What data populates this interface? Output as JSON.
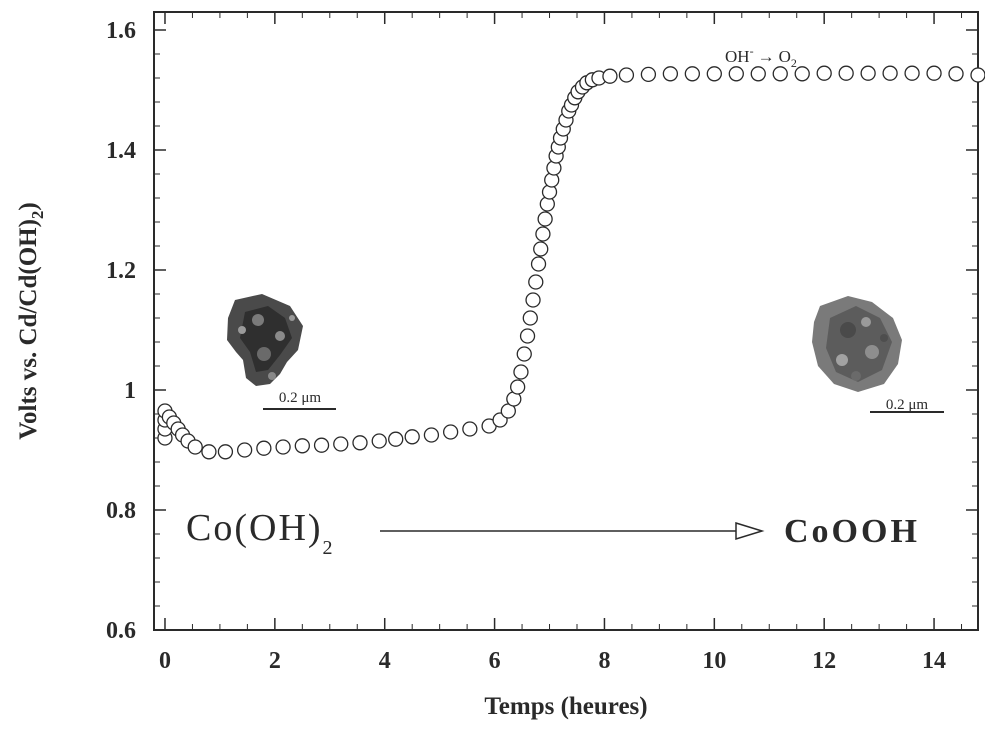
{
  "chart_data": {
    "type": "scatter",
    "xlabel": "Temps (heures)",
    "ylabel": "Volts vs. Cd/Cd(OH)",
    "ylabel_subscript": "2",
    "xlim": [
      -0.2,
      14.8
    ],
    "ylim": [
      0.6,
      1.63
    ],
    "x_ticks": [
      0,
      2,
      4,
      6,
      8,
      10,
      12,
      14
    ],
    "x_tick_labels": [
      "0",
      "2",
      "4",
      "6",
      "8",
      "10",
      "12",
      "14"
    ],
    "y_ticks": [
      0.6,
      0.8,
      1.0,
      1.2,
      1.4,
      1.6
    ],
    "y_tick_labels": [
      "0.6",
      "0.8",
      "1",
      "1.2",
      "1.4",
      "1.6"
    ],
    "grid": false,
    "marker": "open-circle",
    "series": [
      {
        "x": [
          0,
          0,
          0,
          0,
          0.08,
          0.16,
          0.24,
          0.32,
          0.42,
          0.55,
          0.8,
          1.1,
          1.45,
          1.8,
          2.15,
          2.5,
          2.85,
          3.2,
          3.55,
          3.9,
          4.2,
          4.5,
          4.85,
          5.2,
          5.55,
          5.9,
          6.1,
          6.25,
          6.35,
          6.42,
          6.48,
          6.54,
          6.6,
          6.65,
          6.7,
          6.75,
          6.8,
          6.84,
          6.88,
          6.92,
          6.96,
          7.0,
          7.04,
          7.08,
          7.12,
          7.16,
          7.2,
          7.25,
          7.3,
          7.35,
          7.4,
          7.46,
          7.52,
          7.6,
          7.68,
          7.78,
          7.9,
          8.1,
          8.4,
          8.8,
          9.2,
          9.6,
          10.0,
          10.4,
          10.8,
          11.2,
          11.6,
          12.0,
          12.4,
          12.8,
          13.2,
          13.6,
          14.0,
          14.4,
          14.8
        ],
        "y": [
          0.92,
          0.935,
          0.95,
          0.965,
          0.955,
          0.945,
          0.935,
          0.925,
          0.915,
          0.905,
          0.897,
          0.897,
          0.9,
          0.903,
          0.905,
          0.907,
          0.908,
          0.91,
          0.912,
          0.915,
          0.918,
          0.922,
          0.925,
          0.93,
          0.935,
          0.94,
          0.95,
          0.965,
          0.985,
          1.005,
          1.03,
          1.06,
          1.09,
          1.12,
          1.15,
          1.18,
          1.21,
          1.235,
          1.26,
          1.285,
          1.31,
          1.33,
          1.35,
          1.37,
          1.39,
          1.405,
          1.42,
          1.435,
          1.45,
          1.465,
          1.475,
          1.487,
          1.497,
          1.505,
          1.512,
          1.517,
          1.52,
          1.523,
          1.525,
          1.526,
          1.527,
          1.527,
          1.527,
          1.527,
          1.527,
          1.527,
          1.527,
          1.528,
          1.528,
          1.528,
          1.528,
          1.528,
          1.528,
          1.527,
          1.525
        ]
      }
    ],
    "annotations": {
      "start_label": "Co(OH)",
      "start_label_sub": "2",
      "end_label": "CoOOH",
      "reaction_oh": "OH",
      "reaction_sup": "-",
      "reaction_arrow": "→",
      "reaction_o": "O",
      "reaction_sub": "2",
      "scale_left": "0.2 μm",
      "scale_right": "0.2 μm"
    },
    "colors": {
      "ink": "#2a2a2a",
      "marker_fill": "#ffffff",
      "particle_dark": "#3a3a3a",
      "particle_mid": "#6e6e6e",
      "particle_light": "#9a9a9a"
    }
  }
}
